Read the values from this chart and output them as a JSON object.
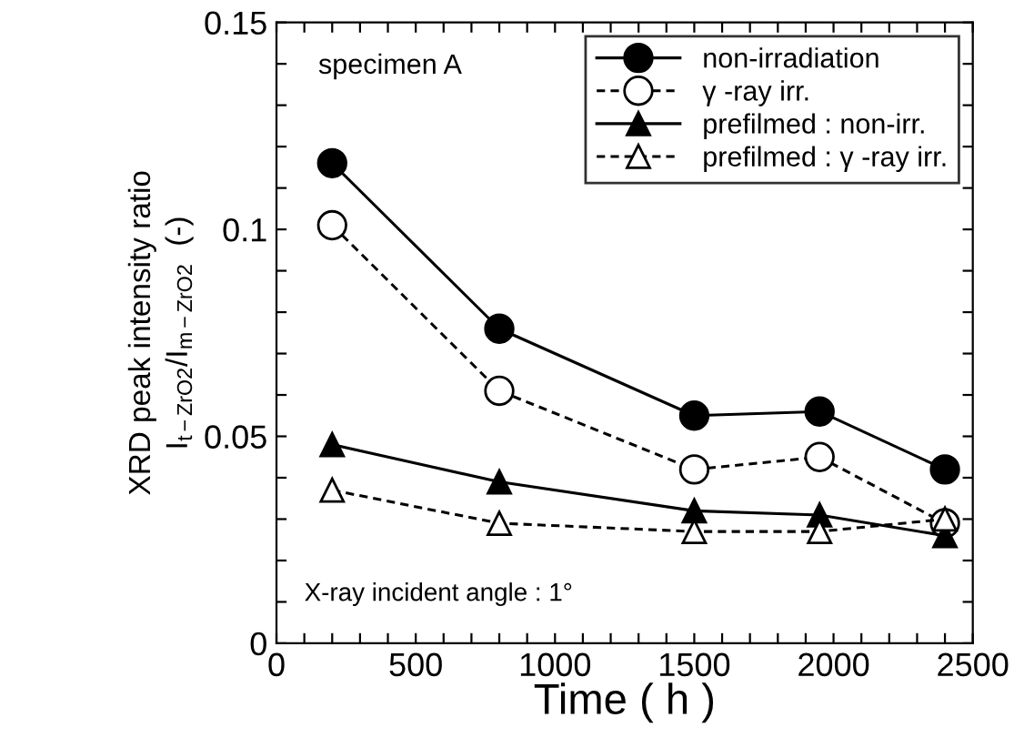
{
  "chart_data": {
    "type": "line",
    "xlabel": "Time ( h )",
    "ylabel": "XRD peak intensity ratio\nI$_{t−ZrO2}$/I$_{m−ZrO2}$  (-)",
    "x": [
      200,
      800,
      1500,
      1950,
      2400
    ],
    "series": [
      {
        "name": "non-irradiation",
        "color": "#000000",
        "marker": "circle",
        "line_style": "solid",
        "values": [
          0.116,
          0.076,
          0.055,
          0.056,
          0.042
        ]
      },
      {
        "name": "γ -ray irr.",
        "color": "#000000",
        "marker": "circle",
        "line_style": "dashed",
        "values": [
          0.101,
          0.061,
          0.042,
          0.045,
          0.029
        ]
      },
      {
        "name": "prefilmed : non-irr.",
        "color": "#000000",
        "marker": "triangle",
        "line_style": "solid",
        "values": [
          0.048,
          0.039,
          0.032,
          0.031,
          0.026
        ]
      },
      {
        "name": "prefilmed : γ -ray irr.",
        "color": "#000000",
        "marker": "triangle",
        "line_style": "dashed",
        "values": [
          0.037,
          0.029,
          0.027,
          0.027,
          0.03
        ]
      }
    ],
    "xlim": [
      0,
      2500
    ],
    "ylim": [
      0,
      0.15
    ],
    "xticks": [
      0,
      {
        "value": 100,
        "label": null
      },
      {
        "value": 200,
        "label": null
      },
      {
        "value": 300,
        "label": null
      },
      {
        "value": 400,
        "label": null
      },
      500,
      {
        "value": 600,
        "label": null
      },
      {
        "value": 700,
        "label": null
      },
      {
        "value": 800,
        "label": null
      },
      {
        "value": 900,
        "label": null
      },
      1000,
      {
        "value": 1100,
        "label": null
      },
      {
        "value": 1200,
        "label": null
      },
      {
        "value": 1300,
        "label": null
      },
      {
        "value": 1400,
        "label": null
      },
      1500,
      {
        "value": 1600,
        "label": null
      },
      {
        "value": 1700,
        "label": null
      },
      {
        "value": 1800,
        "label": null
      },
      {
        "value": 1900,
        "label": null
      },
      2000,
      {
        "value": 2100,
        "label": null
      },
      {
        "value": 2200,
        "label": null
      },
      {
        "value": 2300,
        "label": null
      },
      {
        "value": 2400,
        "label": null
      },
      2500
    ],
    "yticks": [
      0,
      {
        "value": 0.01,
        "label": null
      },
      {
        "value": 0.02,
        "label": null
      },
      {
        "value": 0.03,
        "label": null
      },
      {
        "value": 0.04,
        "label": null
      },
      0.05,
      {
        "value": 0.06,
        "label": null
      },
      {
        "value": 0.07,
        "label": null
      },
      {
        "value": 0.08,
        "label": null
      },
      {
        "value": 0.09,
        "label": null
      },
      0.1,
      {
        "value": 0.11,
        "label": null
      },
      {
        "value": 0.12,
        "label": null
      },
      {
        "value": 0.13,
        "label": null
      },
      {
        "value": 0.14,
        "label": null
      },
      0.15
    ],
    "annotations": [
      "specimen A",
      "X-ray incident angle : 1°"
    ],
    "legend": "top right",
    "grid": false
  }
}
